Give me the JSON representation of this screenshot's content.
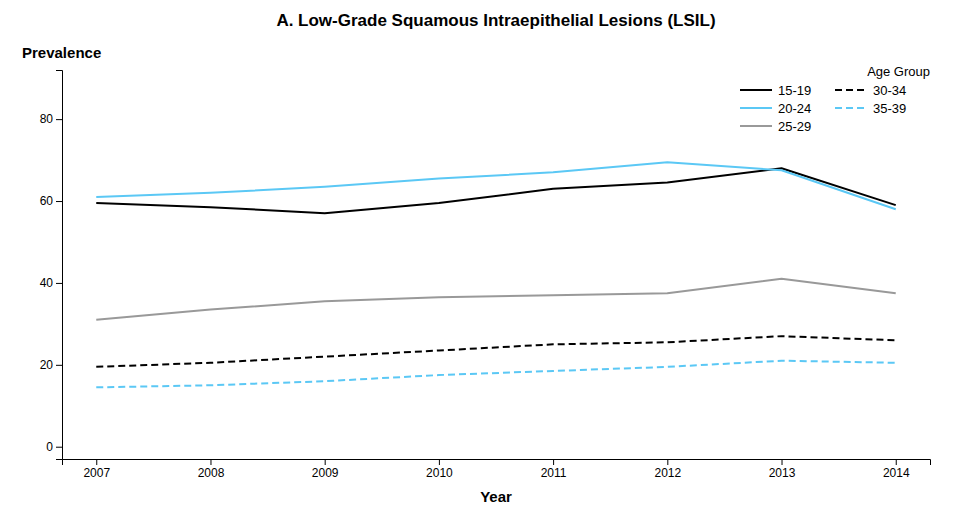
{
  "chart_data": {
    "type": "line",
    "title": "A. Low-Grade Squamous Intraepithelial Lesions (LSIL)",
    "x_label": "Year",
    "y_label": "Prevalence",
    "legend_title": "Age Group",
    "x": [
      2007,
      2008,
      2009,
      2010,
      2011,
      2012,
      2013,
      2014
    ],
    "series": [
      {
        "name": "15-19",
        "color": "#000000",
        "line_style": "solid",
        "values": [
          59.5,
          58.5,
          57.0,
          59.5,
          63.0,
          64.5,
          68.0,
          59.0
        ]
      },
      {
        "name": "20-24",
        "color": "#5bc8f5",
        "line_style": "solid",
        "values": [
          61.0,
          62.0,
          63.5,
          65.5,
          67.0,
          69.5,
          67.5,
          58.0
        ]
      },
      {
        "name": "25-29",
        "color": "#999999",
        "line_style": "solid",
        "values": [
          31.0,
          33.5,
          35.5,
          36.5,
          37.0,
          37.5,
          41.0,
          37.5
        ]
      },
      {
        "name": "30-34",
        "color": "#000000",
        "line_style": "dashed",
        "values": [
          19.5,
          20.5,
          22.0,
          23.5,
          25.0,
          25.5,
          27.0,
          26.0
        ]
      },
      {
        "name": "35-39",
        "color": "#5bc8f5",
        "line_style": "dashed",
        "values": [
          14.5,
          15.0,
          16.0,
          17.5,
          18.5,
          19.5,
          21.0,
          20.5
        ]
      }
    ],
    "xlim": [
      2006.7,
      2014.3
    ],
    "xticks": [
      2007,
      2008,
      2009,
      2010,
      2011,
      2012,
      2013,
      2014
    ],
    "ylim": [
      -3,
      92
    ],
    "yticks": [
      0,
      20,
      40,
      60,
      80
    ],
    "grid": false,
    "legend": "top-right"
  }
}
